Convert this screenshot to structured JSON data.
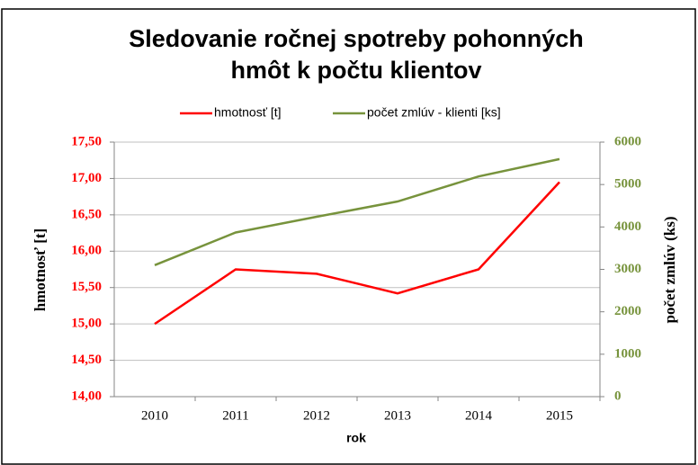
{
  "chart_data": {
    "type": "line",
    "title": [
      "Sledovanie ročnej spotreby pohonných",
      "hmôt k počtu klientov"
    ],
    "xlabel": "rok",
    "ylabel": "hmotnosť [t]",
    "y2label": "počet zmlúv (ks)",
    "categories": [
      "2010",
      "2011",
      "2012",
      "2013",
      "2014",
      "2015"
    ],
    "series": [
      {
        "name": "hmotnosť [t]",
        "color": "#ff0000",
        "values": [
          15.0,
          15.75,
          15.69,
          15.42,
          15.75,
          16.95
        ]
      },
      {
        "name": "počet zmlúv - klienti [ks]",
        "color": "#77933c",
        "axis": "y2",
        "values": [
          3100,
          3870,
          4240,
          4600,
          5190,
          5600
        ]
      }
    ],
    "ylim": [
      14,
      17.5
    ],
    "yticks": [
      {
        "value": 14,
        "label": "14,00"
      },
      {
        "value": 14.5,
        "label": "14,50"
      },
      {
        "value": 15,
        "label": "15,00"
      },
      {
        "value": 15.5,
        "label": "15,50"
      },
      {
        "value": 16,
        "label": "16,00"
      },
      {
        "value": 16.5,
        "label": "16,50"
      },
      {
        "value": 17,
        "label": "17,00"
      },
      {
        "value": 17.5,
        "label": "17,50"
      }
    ],
    "y2lim": [
      0,
      6000
    ],
    "y2ticks": [
      0,
      1000,
      2000,
      3000,
      4000,
      5000,
      6000
    ],
    "grid": true,
    "legend": "top"
  }
}
